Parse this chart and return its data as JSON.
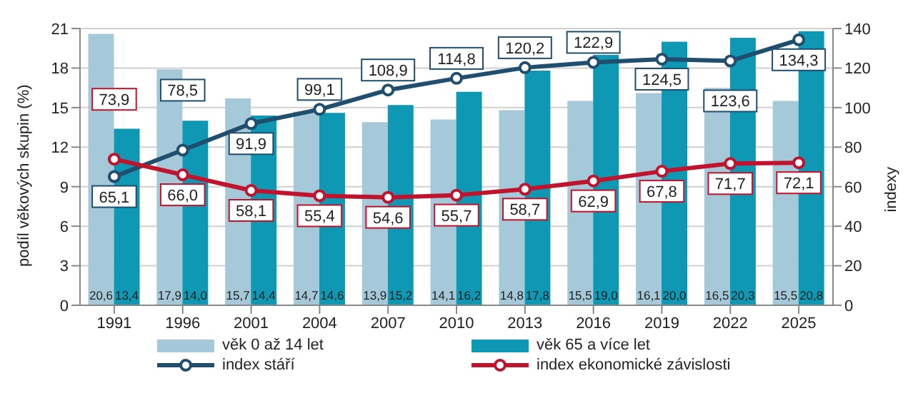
{
  "chart_data": {
    "type": "bar",
    "categories": [
      "1991",
      "1996",
      "2001",
      "2004",
      "2007",
      "2010",
      "2013",
      "2016",
      "2019",
      "2022",
      "2025"
    ],
    "ylabel": "podíl věkových skupin (%)",
    "y2label": "indexy",
    "ylim": [
      0,
      21
    ],
    "yticks": [
      0,
      3,
      6,
      9,
      12,
      15,
      18,
      21
    ],
    "y2lim": [
      0,
      140
    ],
    "y2ticks": [
      0,
      20,
      40,
      60,
      80,
      100,
      120,
      140
    ],
    "grid": "y",
    "legend": "bottom",
    "marker": "circle",
    "series": [
      {
        "name": "věk 0 až 14 let",
        "color": "#a5c9d8",
        "values": [
          20.6,
          17.9,
          15.7,
          14.7,
          13.9,
          14.1,
          14.8,
          15.5,
          16.1,
          16.5,
          15.5
        ],
        "value_labels": [
          "20,6",
          "17,9",
          "15,7",
          "14,7",
          "13,9",
          "14,1",
          "14,8",
          "15,5",
          "16,1",
          "16,5",
          "15,5"
        ]
      },
      {
        "name": "věk 65 a více let",
        "color": "#0f98b3",
        "values": [
          13.4,
          14.0,
          14.4,
          14.6,
          15.2,
          16.2,
          17.8,
          19.0,
          20.0,
          20.3,
          20.8
        ],
        "value_labels": [
          "13,4",
          "14,0",
          "14,4",
          "14,6",
          "15,2",
          "16,2",
          "17,8",
          "19,0",
          "20,0",
          "20,3",
          "20,8"
        ]
      },
      {
        "name": "index stáří",
        "type": "line",
        "axis": "y2",
        "color": "#1f4e6e",
        "values": [
          65.1,
          78.5,
          91.9,
          99.1,
          108.9,
          114.8,
          120.2,
          122.9,
          124.5,
          123.6,
          134.3
        ],
        "value_labels": [
          "65,1",
          "78,5",
          "91,9",
          "99,1",
          "108,9",
          "114,8",
          "120,2",
          "122,9",
          "124,5",
          "123,6",
          "134,3"
        ]
      },
      {
        "name": "index ekonomické závislosti",
        "type": "line",
        "axis": "y2",
        "color": "#c0142e",
        "values": [
          73.9,
          66.0,
          58.1,
          55.4,
          54.6,
          55.7,
          58.7,
          62.9,
          67.8,
          71.7,
          72.1
        ],
        "value_labels": [
          "73,9",
          "66,0",
          "58,1",
          "55,4",
          "54,6",
          "55,7",
          "58,7",
          "62,9",
          "67,8",
          "71,7",
          "72,1"
        ]
      }
    ]
  }
}
